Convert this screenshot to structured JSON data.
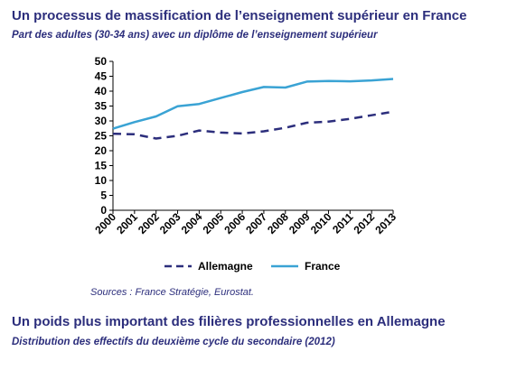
{
  "section1": {
    "title": "Un processus de massification de l’enseignement supérieur en France",
    "subtitle": "Part des adultes (30-34 ans) avec un diplôme de l’enseignement supérieur",
    "source": "Sources : France Stratégie, Eurostat."
  },
  "section2": {
    "title": "Un poids plus important des filières professionnelles en Allemagne",
    "subtitle": "Distribution des effectifs du deuxième cycle du secondaire (2012)"
  },
  "chart_data": {
    "type": "line",
    "x": [
      "2000",
      "2001",
      "2002",
      "2003",
      "2004",
      "2005",
      "2006",
      "2007",
      "2008",
      "2009",
      "2010",
      "2011",
      "2012",
      "2013"
    ],
    "series": [
      {
        "name": "Allemagne",
        "color": "#2c2e7c",
        "style": "dashed",
        "values": [
          25.7,
          25.5,
          24.1,
          25.0,
          26.8,
          26.1,
          25.8,
          26.5,
          27.7,
          29.4,
          29.8,
          30.7,
          31.9,
          33.1
        ]
      },
      {
        "name": "France",
        "color": "#3aa3d4",
        "style": "solid",
        "values": [
          27.4,
          29.6,
          31.5,
          34.9,
          35.7,
          37.7,
          39.7,
          41.4,
          41.2,
          43.2,
          43.4,
          43.3,
          43.6,
          44.1
        ]
      }
    ],
    "yticks": [
      0,
      5,
      10,
      15,
      20,
      25,
      30,
      35,
      40,
      45,
      50
    ],
    "ylim": [
      0,
      50
    ],
    "grid": false,
    "legend": "bottom"
  }
}
